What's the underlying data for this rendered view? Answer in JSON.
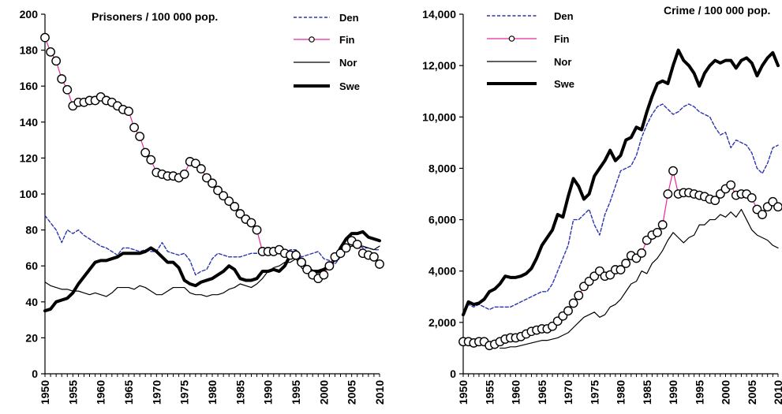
{
  "chart_data": [
    {
      "type": "line",
      "title": "Prisoners / 100 000 pop.",
      "xlabel": "",
      "ylabel": "",
      "xlim": [
        1950,
        2010
      ],
      "ylim": [
        0,
        200
      ],
      "x_ticks": [
        1950,
        1955,
        1960,
        1965,
        1970,
        1975,
        1980,
        1985,
        1990,
        1995,
        2000,
        2005,
        2010
      ],
      "y_ticks": [
        0,
        20,
        40,
        60,
        80,
        100,
        120,
        140,
        160,
        180,
        200
      ],
      "y_tick_labels": [
        "0",
        "20",
        "40",
        "60",
        "80",
        "100",
        "120",
        "140",
        "160",
        "180",
        "200"
      ],
      "grid": false,
      "legend_position": "top-right",
      "series": [
        {
          "name": "Den",
          "color": "#2a35b0",
          "style": "dashed",
          "x": [
            1950,
            1951,
            1952,
            1953,
            1954,
            1955,
            1956,
            1957,
            1958,
            1959,
            1960,
            1961,
            1962,
            1963,
            1964,
            1965,
            1966,
            1967,
            1968,
            1969,
            1970,
            1971,
            1972,
            1973,
            1974,
            1975,
            1976,
            1977,
            1978,
            1979,
            1980,
            1981,
            1982,
            1983,
            1984,
            1985,
            1986,
            1987,
            1988,
            1989,
            1990,
            1991,
            1992,
            1993,
            1994,
            1995,
            1996,
            1997,
            1998,
            1999,
            2000,
            2001,
            2002,
            2003,
            2004,
            2005,
            2006,
            2007,
            2008,
            2009,
            2010
          ],
          "values": [
            88,
            84,
            80,
            73,
            80,
            78,
            80,
            77,
            75,
            73,
            71,
            70,
            68,
            66,
            70,
            70,
            69,
            68,
            69,
            68,
            68,
            73,
            68,
            67,
            66,
            67,
            63,
            55,
            57,
            58,
            64,
            67,
            66,
            65,
            65,
            65,
            66,
            67,
            67,
            67,
            67,
            67,
            67,
            67,
            69,
            69,
            65,
            66,
            67,
            68,
            64,
            63,
            61,
            65,
            71,
            71,
            72,
            70,
            70,
            69,
            69
          ]
        },
        {
          "name": "Fin",
          "color": "#e8299e",
          "style": "solid-circles",
          "x": [
            1950,
            1951,
            1952,
            1953,
            1954,
            1955,
            1956,
            1957,
            1958,
            1959,
            1960,
            1961,
            1962,
            1963,
            1964,
            1965,
            1966,
            1967,
            1968,
            1969,
            1970,
            1971,
            1972,
            1973,
            1974,
            1975,
            1976,
            1977,
            1978,
            1979,
            1980,
            1981,
            1982,
            1983,
            1984,
            1985,
            1986,
            1987,
            1988,
            1989,
            1990,
            1991,
            1992,
            1993,
            1994,
            1995,
            1996,
            1997,
            1998,
            1999,
            2000,
            2001,
            2002,
            2003,
            2004,
            2005,
            2006,
            2007,
            2008,
            2009,
            2010
          ],
          "values": [
            187,
            179,
            174,
            164,
            158,
            149,
            151,
            151,
            152,
            152,
            154,
            152,
            151,
            149,
            147,
            146,
            137,
            132,
            123,
            119,
            112,
            111,
            110,
            110,
            109,
            111,
            118,
            117,
            114,
            109,
            106,
            102,
            99,
            96,
            93,
            89,
            86,
            84,
            80,
            68,
            68,
            68,
            69,
            67,
            66,
            66,
            62,
            58,
            55,
            53,
            55,
            60,
            65,
            67,
            70,
            74,
            72,
            67,
            66,
            65,
            61
          ]
        },
        {
          "name": "Nor",
          "color": "#000000",
          "style": "thin",
          "x": [
            1950,
            1951,
            1952,
            1953,
            1954,
            1955,
            1956,
            1957,
            1958,
            1959,
            1960,
            1961,
            1962,
            1963,
            1964,
            1965,
            1966,
            1967,
            1968,
            1969,
            1970,
            1971,
            1972,
            1973,
            1974,
            1975,
            1976,
            1977,
            1978,
            1979,
            1980,
            1981,
            1982,
            1983,
            1984,
            1985,
            1986,
            1987,
            1988,
            1989,
            1990,
            1991,
            1992,
            1993,
            1994,
            1995,
            1996,
            1997,
            1998,
            1999,
            2000,
            2001,
            2002,
            2003,
            2004,
            2005,
            2006,
            2007,
            2008,
            2009,
            2010
          ],
          "values": [
            51,
            49,
            48,
            47,
            47,
            46,
            46,
            45,
            44,
            45,
            44,
            43,
            45,
            48,
            48,
            48,
            47,
            49,
            48,
            46,
            44,
            44,
            46,
            48,
            48,
            48,
            45,
            44,
            44,
            43,
            44,
            44,
            45,
            47,
            48,
            50,
            49,
            48,
            50,
            53,
            57,
            59,
            60,
            62,
            62,
            64,
            59,
            56,
            57,
            56,
            58,
            61,
            63,
            65,
            69,
            71,
            71,
            71,
            70,
            69,
            71
          ]
        },
        {
          "name": "Swe",
          "color": "#000000",
          "style": "thick",
          "x": [
            1950,
            1951,
            1952,
            1953,
            1954,
            1955,
            1956,
            1957,
            1958,
            1959,
            1960,
            1961,
            1962,
            1963,
            1964,
            1965,
            1966,
            1967,
            1968,
            1969,
            1970,
            1971,
            1972,
            1973,
            1974,
            1975,
            1976,
            1977,
            1978,
            1979,
            1980,
            1981,
            1982,
            1983,
            1984,
            1985,
            1986,
            1987,
            1988,
            1989,
            1990,
            1991,
            1992,
            1993,
            1994,
            1995,
            1996,
            1997,
            1998,
            1999,
            2000,
            2001,
            2002,
            2003,
            2004,
            2005,
            2006,
            2007,
            2008,
            2009,
            2010
          ],
          "values": [
            35,
            36,
            40,
            41,
            42,
            45,
            50,
            54,
            58,
            62,
            63,
            63,
            64,
            65,
            67,
            67,
            67,
            67,
            68,
            70,
            68,
            65,
            62,
            62,
            59,
            52,
            50,
            49,
            51,
            52,
            53,
            55,
            57,
            60,
            58,
            53,
            52,
            52,
            53,
            57,
            57,
            58,
            57,
            60,
            66,
            68,
            62,
            59,
            57,
            57,
            58,
            60,
            64,
            70,
            75,
            78,
            78,
            79,
            76,
            75,
            74
          ]
        }
      ]
    },
    {
      "type": "line",
      "title": "Crime / 100 000 pop.",
      "xlabel": "",
      "ylabel": "",
      "xlim": [
        1950,
        2010
      ],
      "ylim": [
        0,
        14000
      ],
      "x_ticks": [
        1950,
        1955,
        1960,
        1965,
        1970,
        1975,
        1980,
        1985,
        1990,
        1995,
        2000,
        2005,
        2010
      ],
      "y_ticks": [
        0,
        2000,
        4000,
        6000,
        8000,
        10000,
        12000,
        14000
      ],
      "y_tick_labels": [
        "0",
        "2,000",
        "4,000",
        "6,000",
        "8,000",
        "10,000",
        "12,000",
        "14,000"
      ],
      "grid": false,
      "legend_position": "top-left",
      "series": [
        {
          "name": "Den",
          "color": "#2a35b0",
          "style": "dashed",
          "x": [
            1950,
            1951,
            1952,
            1953,
            1954,
            1955,
            1956,
            1957,
            1958,
            1959,
            1960,
            1961,
            1962,
            1963,
            1964,
            1965,
            1966,
            1967,
            1968,
            1969,
            1970,
            1971,
            1972,
            1973,
            1974,
            1975,
            1976,
            1977,
            1978,
            1979,
            1980,
            1981,
            1982,
            1983,
            1984,
            1985,
            1986,
            1987,
            1988,
            1989,
            1990,
            1991,
            1992,
            1993,
            1994,
            1995,
            1996,
            1997,
            1998,
            1999,
            2000,
            2001,
            2002,
            2003,
            2004,
            2005,
            2006,
            2007,
            2008,
            2009,
            2010
          ],
          "values": [
            2300,
            2700,
            2600,
            2700,
            2600,
            2500,
            2600,
            2600,
            2600,
            2600,
            2700,
            2800,
            2900,
            3000,
            3100,
            3200,
            3200,
            3500,
            4000,
            4500,
            5000,
            6000,
            6000,
            6200,
            6400,
            5800,
            5400,
            6200,
            6700,
            7300,
            7900,
            8000,
            8100,
            8500,
            9200,
            9700,
            10100,
            10400,
            10500,
            10300,
            10100,
            10200,
            10400,
            10500,
            10400,
            10200,
            10100,
            10000,
            9600,
            9300,
            9400,
            8800,
            9100,
            9000,
            8900,
            8600,
            8000,
            7800,
            8200,
            8800,
            8900
          ]
        },
        {
          "name": "Fin",
          "color": "#e8299e",
          "style": "solid-circles",
          "x": [
            1950,
            1951,
            1952,
            1953,
            1954,
            1955,
            1956,
            1957,
            1958,
            1959,
            1960,
            1961,
            1962,
            1963,
            1964,
            1965,
            1966,
            1967,
            1968,
            1969,
            1970,
            1971,
            1972,
            1973,
            1974,
            1975,
            1976,
            1977,
            1978,
            1979,
            1980,
            1981,
            1982,
            1983,
            1984,
            1985,
            1986,
            1987,
            1988,
            1989,
            1990,
            1991,
            1992,
            1993,
            1994,
            1995,
            1996,
            1997,
            1998,
            1999,
            2000,
            2001,
            2002,
            2003,
            2004,
            2005,
            2006,
            2007,
            2008,
            2009,
            2010
          ],
          "values": [
            1250,
            1250,
            1200,
            1250,
            1250,
            1100,
            1150,
            1250,
            1350,
            1400,
            1400,
            1450,
            1550,
            1650,
            1700,
            1750,
            1750,
            1850,
            2050,
            2250,
            2450,
            2750,
            3050,
            3400,
            3600,
            3800,
            4000,
            3800,
            3850,
            4050,
            4050,
            4300,
            4600,
            4500,
            4700,
            5200,
            5400,
            5500,
            5800,
            7000,
            7900,
            7000,
            7050,
            7050,
            7000,
            6950,
            6900,
            6800,
            6750,
            7000,
            7200,
            7350,
            6950,
            7000,
            7000,
            6850,
            6400,
            6200,
            6500,
            6700,
            6500
          ]
        },
        {
          "name": "Nor",
          "color": "#000000",
          "style": "thin",
          "x": [
            1957,
            1958,
            1959,
            1960,
            1961,
            1962,
            1963,
            1964,
            1965,
            1966,
            1967,
            1968,
            1969,
            1970,
            1971,
            1972,
            1973,
            1974,
            1975,
            1976,
            1977,
            1978,
            1979,
            1980,
            1981,
            1982,
            1983,
            1984,
            1985,
            1986,
            1987,
            1988,
            1989,
            1990,
            1991,
            1992,
            1993,
            1994,
            1995,
            1996,
            1997,
            1998,
            1999,
            2000,
            2001,
            2002,
            2003,
            2004,
            2005,
            2006,
            2007,
            2008,
            2009,
            2010
          ],
          "values": [
            1000,
            1000,
            1050,
            1050,
            1100,
            1150,
            1200,
            1250,
            1300,
            1300,
            1350,
            1400,
            1500,
            1600,
            1800,
            2000,
            2200,
            2300,
            2400,
            2200,
            2300,
            2600,
            2700,
            2900,
            3200,
            3500,
            3600,
            4000,
            3900,
            4300,
            4500,
            4800,
            5200,
            5500,
            5300,
            5100,
            5300,
            5400,
            5800,
            5800,
            6000,
            6000,
            6200,
            6100,
            6300,
            6100,
            6400,
            6000,
            5600,
            5400,
            5300,
            5200,
            5000,
            4900
          ]
        },
        {
          "name": "Swe",
          "color": "#000000",
          "style": "thick",
          "x": [
            1950,
            1951,
            1952,
            1953,
            1954,
            1955,
            1956,
            1957,
            1958,
            1959,
            1960,
            1961,
            1962,
            1963,
            1964,
            1965,
            1966,
            1967,
            1968,
            1969,
            1970,
            1971,
            1972,
            1973,
            1974,
            1975,
            1976,
            1977,
            1978,
            1979,
            1980,
            1981,
            1982,
            1983,
            1984,
            1985,
            1986,
            1987,
            1988,
            1989,
            1990,
            1991,
            1992,
            1993,
            1994,
            1995,
            1996,
            1997,
            1998,
            1999,
            2000,
            2001,
            2002,
            2003,
            2004,
            2005,
            2006,
            2007,
            2008,
            2009,
            2010
          ],
          "values": [
            2300,
            2800,
            2700,
            2750,
            2900,
            3200,
            3300,
            3500,
            3800,
            3750,
            3750,
            3800,
            3900,
            4100,
            4500,
            5000,
            5300,
            5600,
            6200,
            6100,
            6900,
            7600,
            7300,
            6800,
            7000,
            7700,
            8000,
            8300,
            8700,
            8300,
            8500,
            9100,
            9200,
            9600,
            9500,
            10200,
            10800,
            11300,
            11400,
            11300,
            12000,
            12600,
            12200,
            12000,
            11700,
            11200,
            11700,
            12000,
            12200,
            12100,
            12200,
            12200,
            11900,
            12200,
            12300,
            12100,
            11600,
            12000,
            12300,
            12500,
            12000
          ]
        }
      ]
    }
  ]
}
